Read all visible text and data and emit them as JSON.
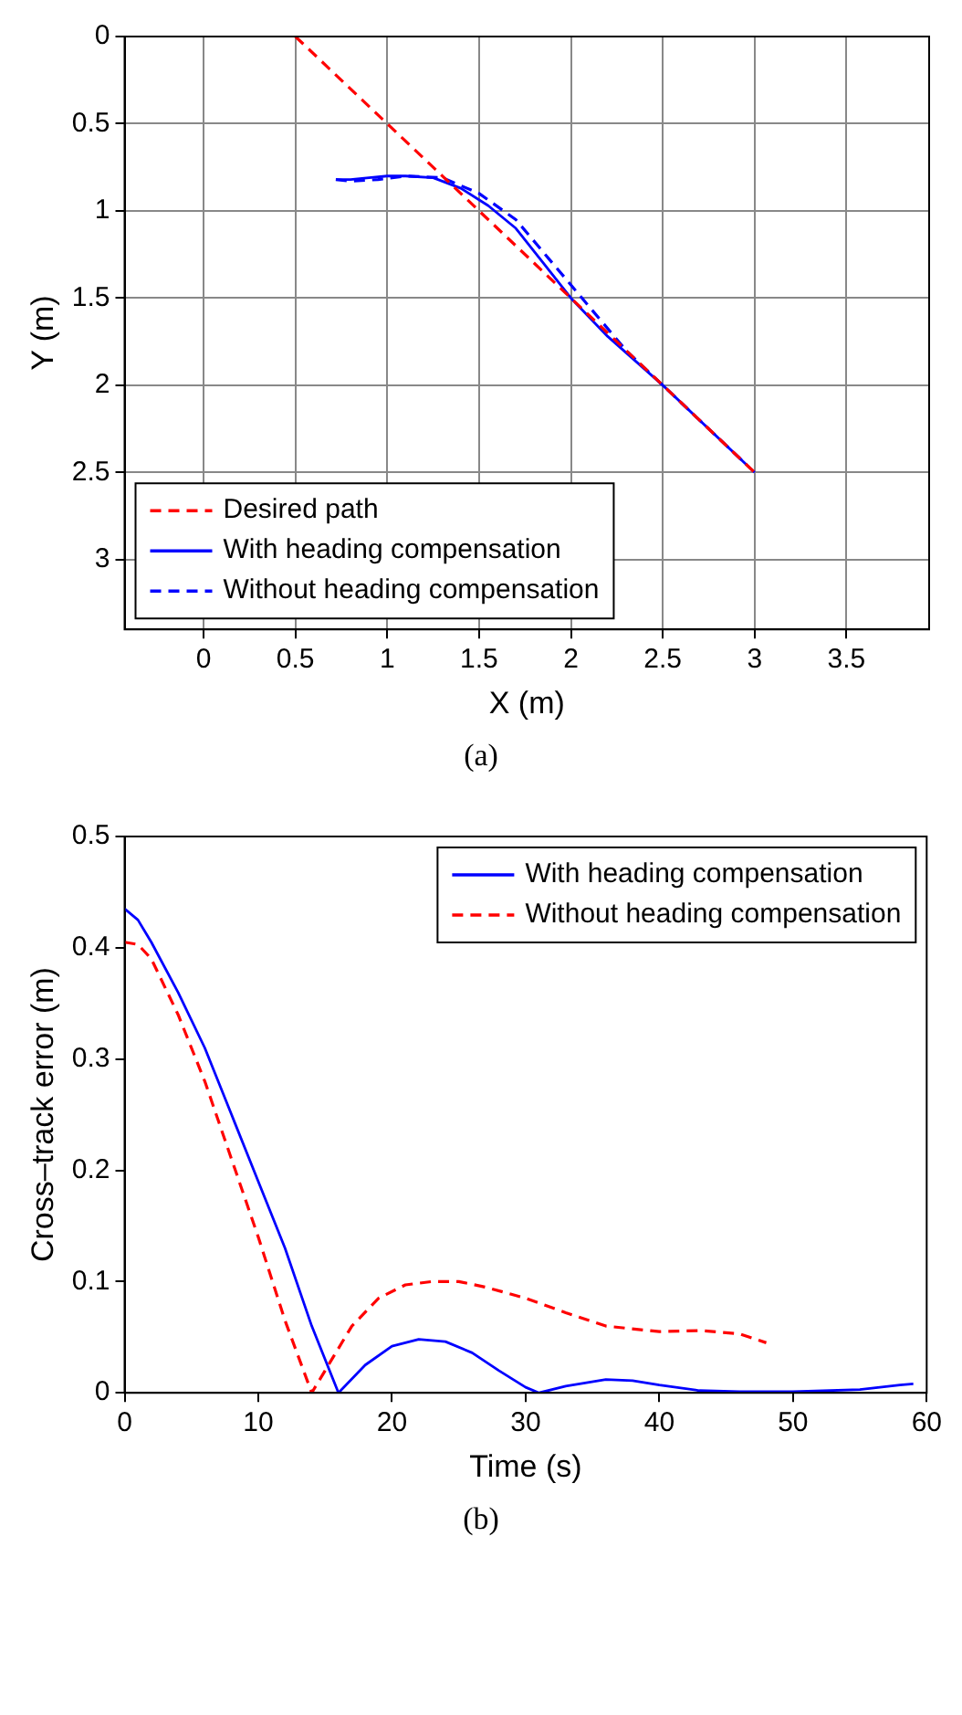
{
  "chart_data": [
    {
      "type": "line",
      "xlabel": "X (m)",
      "ylabel": "Y (m)",
      "annotations": [
        "(a)"
      ],
      "xlim": [
        -0.43,
        3.95
      ],
      "ylim": [
        3.4,
        0
      ],
      "xticks": [
        0,
        0.5,
        1,
        1.5,
        2,
        2.5,
        3,
        3.5
      ],
      "yticks": [
        0,
        0.5,
        1,
        1.5,
        2,
        2.5,
        3
      ],
      "grid": true,
      "legend": "bottom left",
      "marker": "none",
      "series": [
        {
          "name": "Desired path",
          "color": "#ff0000",
          "line_style": "dashed",
          "x": [
            0.5,
            3
          ],
          "values": [
            0,
            2.5
          ]
        },
        {
          "name": "With heading compensation",
          "color": "#0000ff",
          "line_style": "solid",
          "x": [
            0.72,
            0.8,
            0.9,
            1.0,
            1.1,
            1.25,
            1.4,
            1.55,
            1.7,
            1.85,
            2.0,
            2.2,
            2.5,
            2.75,
            3.0
          ],
          "values": [
            0.82,
            0.82,
            0.81,
            0.8,
            0.8,
            0.81,
            0.87,
            0.97,
            1.1,
            1.3,
            1.5,
            1.72,
            2.0,
            2.25,
            2.5
          ]
        },
        {
          "name": "Without heading compensation",
          "color": "#0000ff",
          "line_style": "dashed",
          "x": [
            0.72,
            0.8,
            0.95,
            1.1,
            1.3,
            1.5,
            1.7,
            1.9,
            2.1,
            2.3,
            2.6,
            2.95
          ],
          "values": [
            0.82,
            0.83,
            0.82,
            0.8,
            0.81,
            0.9,
            1.05,
            1.3,
            1.55,
            1.8,
            2.1,
            2.45
          ]
        }
      ]
    },
    {
      "type": "line",
      "xlabel": "Time (s)",
      "ylabel": "Cross–track error (m)",
      "annotations": [
        "(b)"
      ],
      "xlim": [
        0,
        60
      ],
      "ylim": [
        0,
        0.5
      ],
      "xticks": [
        0,
        10,
        20,
        30,
        40,
        50,
        60
      ],
      "yticks": [
        0,
        0.1,
        0.2,
        0.3,
        0.4,
        0.5
      ],
      "grid": false,
      "legend": "top right",
      "marker": "none",
      "series": [
        {
          "name": "With heading compensation",
          "color": "#0000ff",
          "line_style": "solid",
          "x": [
            0,
            1,
            2,
            4,
            6,
            8,
            10,
            12,
            14,
            16,
            18,
            20,
            22,
            24,
            26,
            28,
            30,
            31,
            33,
            36,
            38,
            40,
            43,
            46,
            50,
            55,
            58,
            59
          ],
          "values": [
            0.435,
            0.425,
            0.405,
            0.36,
            0.31,
            0.25,
            0.19,
            0.13,
            0.06,
            0,
            0.025,
            0.042,
            0.048,
            0.046,
            0.036,
            0.02,
            0.005,
            0,
            0.006,
            0.012,
            0.011,
            0.007,
            0.002,
            0.001,
            0.001,
            0.003,
            0.007,
            0.008
          ]
        },
        {
          "name": "Without heading compensation",
          "color": "#ff0000",
          "line_style": "dashed",
          "x": [
            0,
            1,
            2,
            4,
            6,
            8,
            10,
            12,
            14,
            15,
            17,
            19,
            21,
            23,
            25,
            27,
            30,
            33,
            36,
            40,
            43,
            46,
            48
          ],
          "values": [
            0.405,
            0.403,
            0.39,
            0.34,
            0.28,
            0.21,
            0.14,
            0.065,
            0,
            0.02,
            0.06,
            0.085,
            0.097,
            0.1,
            0.1,
            0.095,
            0.085,
            0.072,
            0.06,
            0.055,
            0.056,
            0.053,
            0.045
          ]
        }
      ]
    }
  ]
}
